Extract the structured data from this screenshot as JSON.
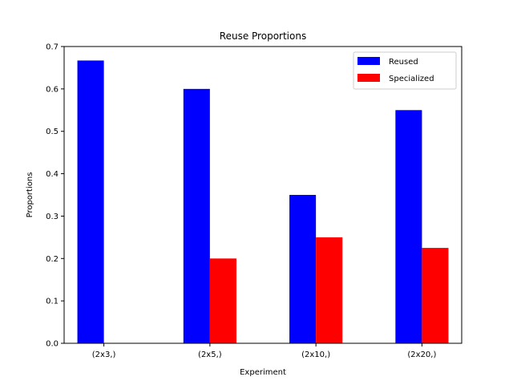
{
  "chart_data": {
    "type": "bar",
    "title": "Reuse Proportions",
    "xlabel": "Experiment",
    "ylabel": "Proportions",
    "categories": [
      "(2x3,)",
      "(2x5,)",
      "(2x10,)",
      "(2x20,)"
    ],
    "series": [
      {
        "name": "Reused",
        "color": "#0000ff",
        "values": [
          0.667,
          0.6,
          0.35,
          0.55
        ]
      },
      {
        "name": "Specialized",
        "color": "#ff0000",
        "values": [
          0.0,
          0.2,
          0.25,
          0.225
        ]
      }
    ],
    "ylim": [
      0,
      0.7
    ],
    "yticks": [
      "0.0",
      "0.1",
      "0.2",
      "0.3",
      "0.4",
      "0.5",
      "0.6",
      "0.7"
    ],
    "grid": false,
    "legend_position": "top-right"
  }
}
